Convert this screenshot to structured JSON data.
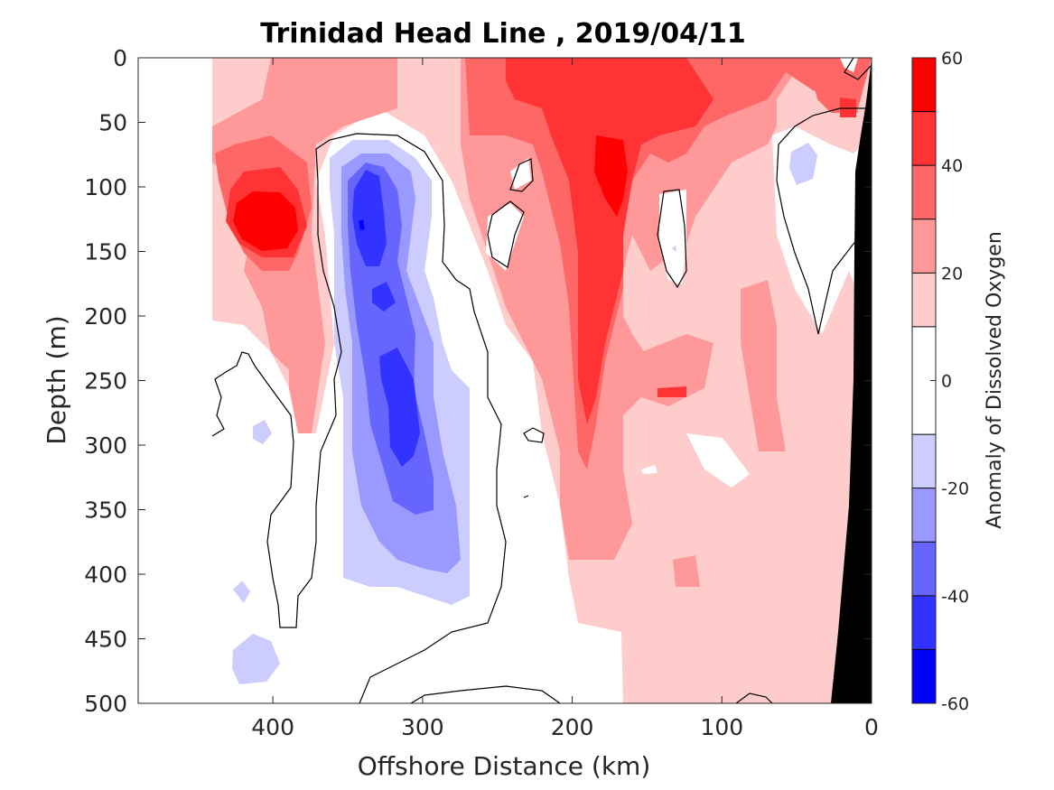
{
  "chart_data": {
    "type": "heatmap",
    "title": "Trinidad Head Line , 2019/04/11",
    "xlabel": "Offshore Distance (km)",
    "ylabel": "Depth (m)",
    "xlim": [
      490,
      0
    ],
    "ylim": [
      0,
      500
    ],
    "x_reversed": true,
    "y_reversed": true,
    "xticks": [
      400,
      300,
      200,
      100,
      0
    ],
    "yticks": [
      0,
      50,
      100,
      150,
      200,
      250,
      300,
      350,
      400,
      450,
      500
    ],
    "colorbar": {
      "label": "Anomaly of Dissolved Oxygen",
      "range": [
        -60,
        60
      ],
      "ticks": [
        60,
        40,
        20,
        0,
        -20,
        -40,
        -60
      ],
      "levels": [
        -60,
        -50,
        -40,
        -30,
        -20,
        -10,
        10,
        20,
        30,
        40,
        50,
        60
      ],
      "colors": [
        "#0000ff",
        "#3333ff",
        "#6666ff",
        "#9999ff",
        "#ccccff",
        "#ffffff",
        "#ffcccc",
        "#ff9999",
        "#ff6666",
        "#ff3333",
        "#ff0000"
      ]
    },
    "grid": false,
    "bottom_mask_color": "#000000",
    "features": [
      {
        "kind": "positive",
        "x": 400,
        "depth": 125,
        "anomaly": 55
      },
      {
        "kind": "positive",
        "x": 170,
        "depth": 100,
        "anomaly": 55
      },
      {
        "kind": "positive",
        "x": 180,
        "depth": 230,
        "anomaly": 40
      },
      {
        "kind": "positive",
        "x": 200,
        "depth": 15,
        "anomaly": 45
      },
      {
        "kind": "negative",
        "x": 335,
        "depth": 140,
        "anomaly": -50
      },
      {
        "kind": "negative",
        "x": 310,
        "depth": 270,
        "anomaly": -45
      },
      {
        "kind": "negative",
        "x": 410,
        "depth": 470,
        "anomaly": -15
      },
      {
        "kind": "negative",
        "x": 40,
        "depth": 80,
        "anomaly": -15
      }
    ]
  }
}
